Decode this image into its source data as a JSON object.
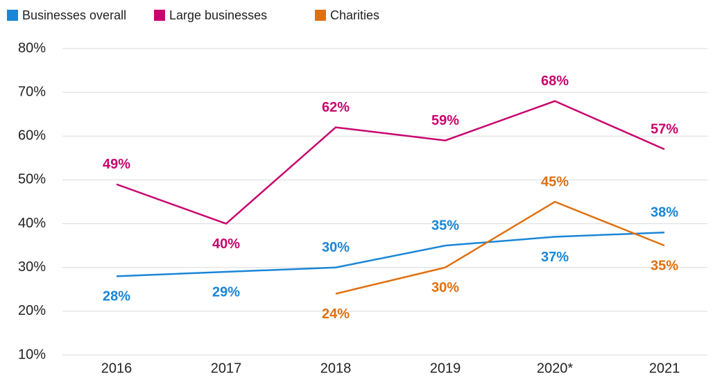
{
  "chart_data": {
    "type": "line",
    "categories": [
      "2016",
      "2017",
      "2018",
      "2019",
      "2020*",
      "2021"
    ],
    "series": [
      {
        "name": "Businesses overall",
        "color": "#1a86d6",
        "values": [
          28,
          29,
          30,
          35,
          37,
          38
        ],
        "value_labels": [
          "28%",
          "29%",
          "30%",
          "35%",
          "37%",
          "38%"
        ]
      },
      {
        "name": "Large businesses",
        "color": "#c8056e",
        "values": [
          49,
          40,
          62,
          59,
          68,
          57
        ],
        "value_labels": [
          "49%",
          "40%",
          "62%",
          "59%",
          "68%",
          "57%"
        ]
      },
      {
        "name": "Charities",
        "color": "#e0700f",
        "values": [
          null,
          null,
          24,
          30,
          45,
          35
        ],
        "value_labels": [
          null,
          null,
          "24%",
          "30%",
          "45%",
          "35%"
        ]
      }
    ],
    "ylim": [
      10,
      80
    ],
    "yticks": [
      {
        "value": 10,
        "label": "10%"
      },
      {
        "value": 20,
        "label": "20%"
      },
      {
        "value": 30,
        "label": "30%"
      },
      {
        "value": 40,
        "label": "40%"
      },
      {
        "value": 50,
        "label": "50%"
      },
      {
        "value": 60,
        "label": "60%"
      },
      {
        "value": 70,
        "label": "70%"
      },
      {
        "value": 80,
        "label": "80%"
      }
    ],
    "grid": true,
    "legend": "top-left"
  }
}
